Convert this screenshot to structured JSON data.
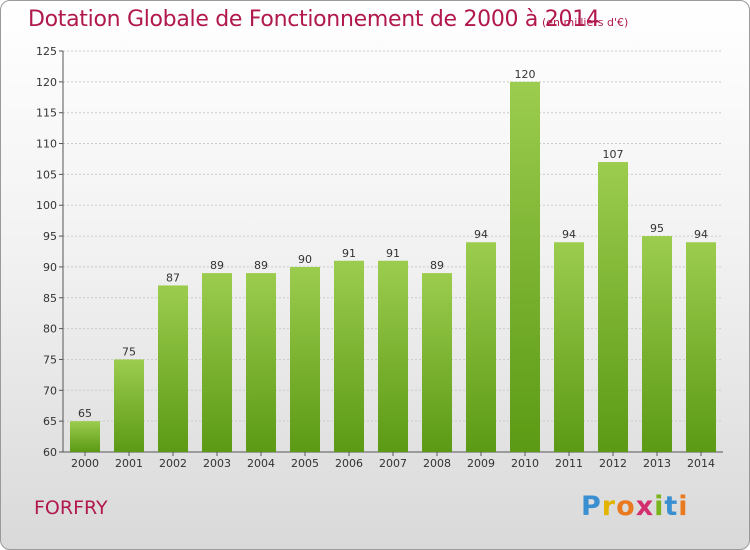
{
  "header": {
    "title": "Dotation Globale de Fonctionnement de 2000 à 2014",
    "subtitle": "(en milliers d'€)"
  },
  "footer": {
    "commune": "FORFRY",
    "logo": {
      "letters": [
        "P",
        "r",
        "o",
        "x",
        "i",
        "t",
        "i"
      ],
      "colors": [
        "#3a8fd1",
        "#e2b400",
        "#e97a1f",
        "#d32f6f",
        "#7ab51d",
        "#3a8fd1",
        "#e97a1f"
      ]
    }
  },
  "colors": {
    "bar_top": "#9ccc4e",
    "bar_bottom": "#5b9a14",
    "grid": "#cccccc",
    "accent": "#b0184e"
  },
  "chart_data": {
    "type": "bar",
    "categories": [
      "2000",
      "2001",
      "2002",
      "2003",
      "2004",
      "2005",
      "2006",
      "2007",
      "2008",
      "2009",
      "2010",
      "2011",
      "2012",
      "2013",
      "2014"
    ],
    "values": [
      65,
      75,
      87,
      89,
      89,
      90,
      91,
      91,
      89,
      94,
      120,
      94,
      107,
      95,
      94
    ],
    "ylim": [
      60,
      125
    ],
    "yticks": [
      60,
      65,
      70,
      75,
      80,
      85,
      90,
      95,
      100,
      105,
      110,
      115,
      120,
      125
    ],
    "grid": true
  }
}
